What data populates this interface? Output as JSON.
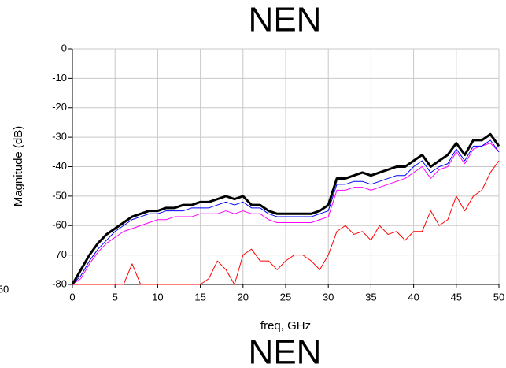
{
  "chart_data": [
    {
      "type": "line",
      "title": "NEN",
      "annotations": [
        "NEN"
      ],
      "xlabel": "freq, GHz",
      "ylabel": "Magnitude (dB)",
      "xlim": [
        0,
        50
      ],
      "xticks": [
        0,
        5,
        10,
        15,
        20,
        25,
        30,
        35,
        40,
        45,
        50
      ],
      "ylim": [
        -80,
        0
      ],
      "yticks": [
        -80,
        -70,
        -60,
        -50,
        -40,
        -30,
        -20,
        -10,
        0
      ],
      "grid": true,
      "x": [
        0,
        1,
        2,
        3,
        4,
        5,
        6,
        7,
        8,
        9,
        10,
        11,
        12,
        13,
        14,
        15,
        16,
        17,
        18,
        19,
        20,
        21,
        22,
        23,
        24,
        25,
        26,
        27,
        28,
        29,
        30,
        31,
        32,
        33,
        34,
        35,
        36,
        37,
        38,
        39,
        40,
        41,
        42,
        43,
        44,
        45,
        46,
        47,
        48,
        49,
        50
      ],
      "series": [
        {
          "color": "#ff0000",
          "width": 1,
          "values": [
            -80,
            -80,
            -80,
            -80,
            -80,
            -80,
            -80,
            -73,
            -80,
            -80,
            -80,
            -80,
            -80,
            -80,
            -80,
            -80,
            -78,
            -72,
            -75,
            -80,
            -70,
            -68,
            -72,
            -72,
            -75,
            -72,
            -70,
            -70,
            -72,
            -75,
            -70,
            -62,
            -60,
            -63,
            -62,
            -65,
            -60,
            -63,
            -62,
            -65,
            -62,
            -62,
            -55,
            -60,
            -58,
            -50,
            -55,
            -50,
            -48,
            -42,
            -38
          ]
        },
        {
          "color": "#ff00ff",
          "width": 1,
          "values": [
            -80,
            -78,
            -73,
            -69,
            -66,
            -64,
            -62,
            -61,
            -60,
            -59,
            -58,
            -58,
            -57,
            -57,
            -57,
            -56,
            -56,
            -56,
            -55,
            -56,
            -55,
            -56,
            -56,
            -58,
            -59,
            -59,
            -59,
            -59,
            -59,
            -58,
            -57,
            -48,
            -48,
            -47,
            -47,
            -48,
            -47,
            -46,
            -45,
            -44,
            -42,
            -40,
            -44,
            -41,
            -40,
            -35,
            -39,
            -34,
            -33,
            -32,
            -35
          ]
        },
        {
          "color": "#0000ff",
          "width": 1,
          "values": [
            -80,
            -77,
            -72,
            -68,
            -65,
            -62,
            -60,
            -58,
            -57,
            -56,
            -56,
            -55,
            -55,
            -55,
            -54,
            -54,
            -54,
            -53,
            -52,
            -53,
            -52,
            -54,
            -54,
            -56,
            -57,
            -57,
            -57,
            -57,
            -57,
            -56,
            -55,
            -46,
            -46,
            -45,
            -45,
            -46,
            -45,
            -44,
            -43,
            -43,
            -40,
            -38,
            -42,
            -40,
            -39,
            -34,
            -38,
            -33,
            -33,
            -31,
            -35
          ]
        },
        {
          "color": "#000000",
          "width": 3,
          "values": [
            -80,
            -75,
            -70,
            -66,
            -63,
            -61,
            -59,
            -57,
            -56,
            -55,
            -55,
            -54,
            -54,
            -53,
            -53,
            -52,
            -52,
            -51,
            -50,
            -51,
            -50,
            -53,
            -53,
            -55,
            -56,
            -56,
            -56,
            -56,
            -56,
            -55,
            -53,
            -44,
            -44,
            -43,
            -42,
            -43,
            -42,
            -41,
            -40,
            -40,
            -38,
            -36,
            -40,
            -38,
            -36,
            -32,
            -36,
            -31,
            -31,
            -29,
            -33
          ]
        }
      ]
    },
    {
      "type": "line",
      "xlim": [
        0,
        50
      ],
      "xticks": [
        50
      ]
    }
  ]
}
